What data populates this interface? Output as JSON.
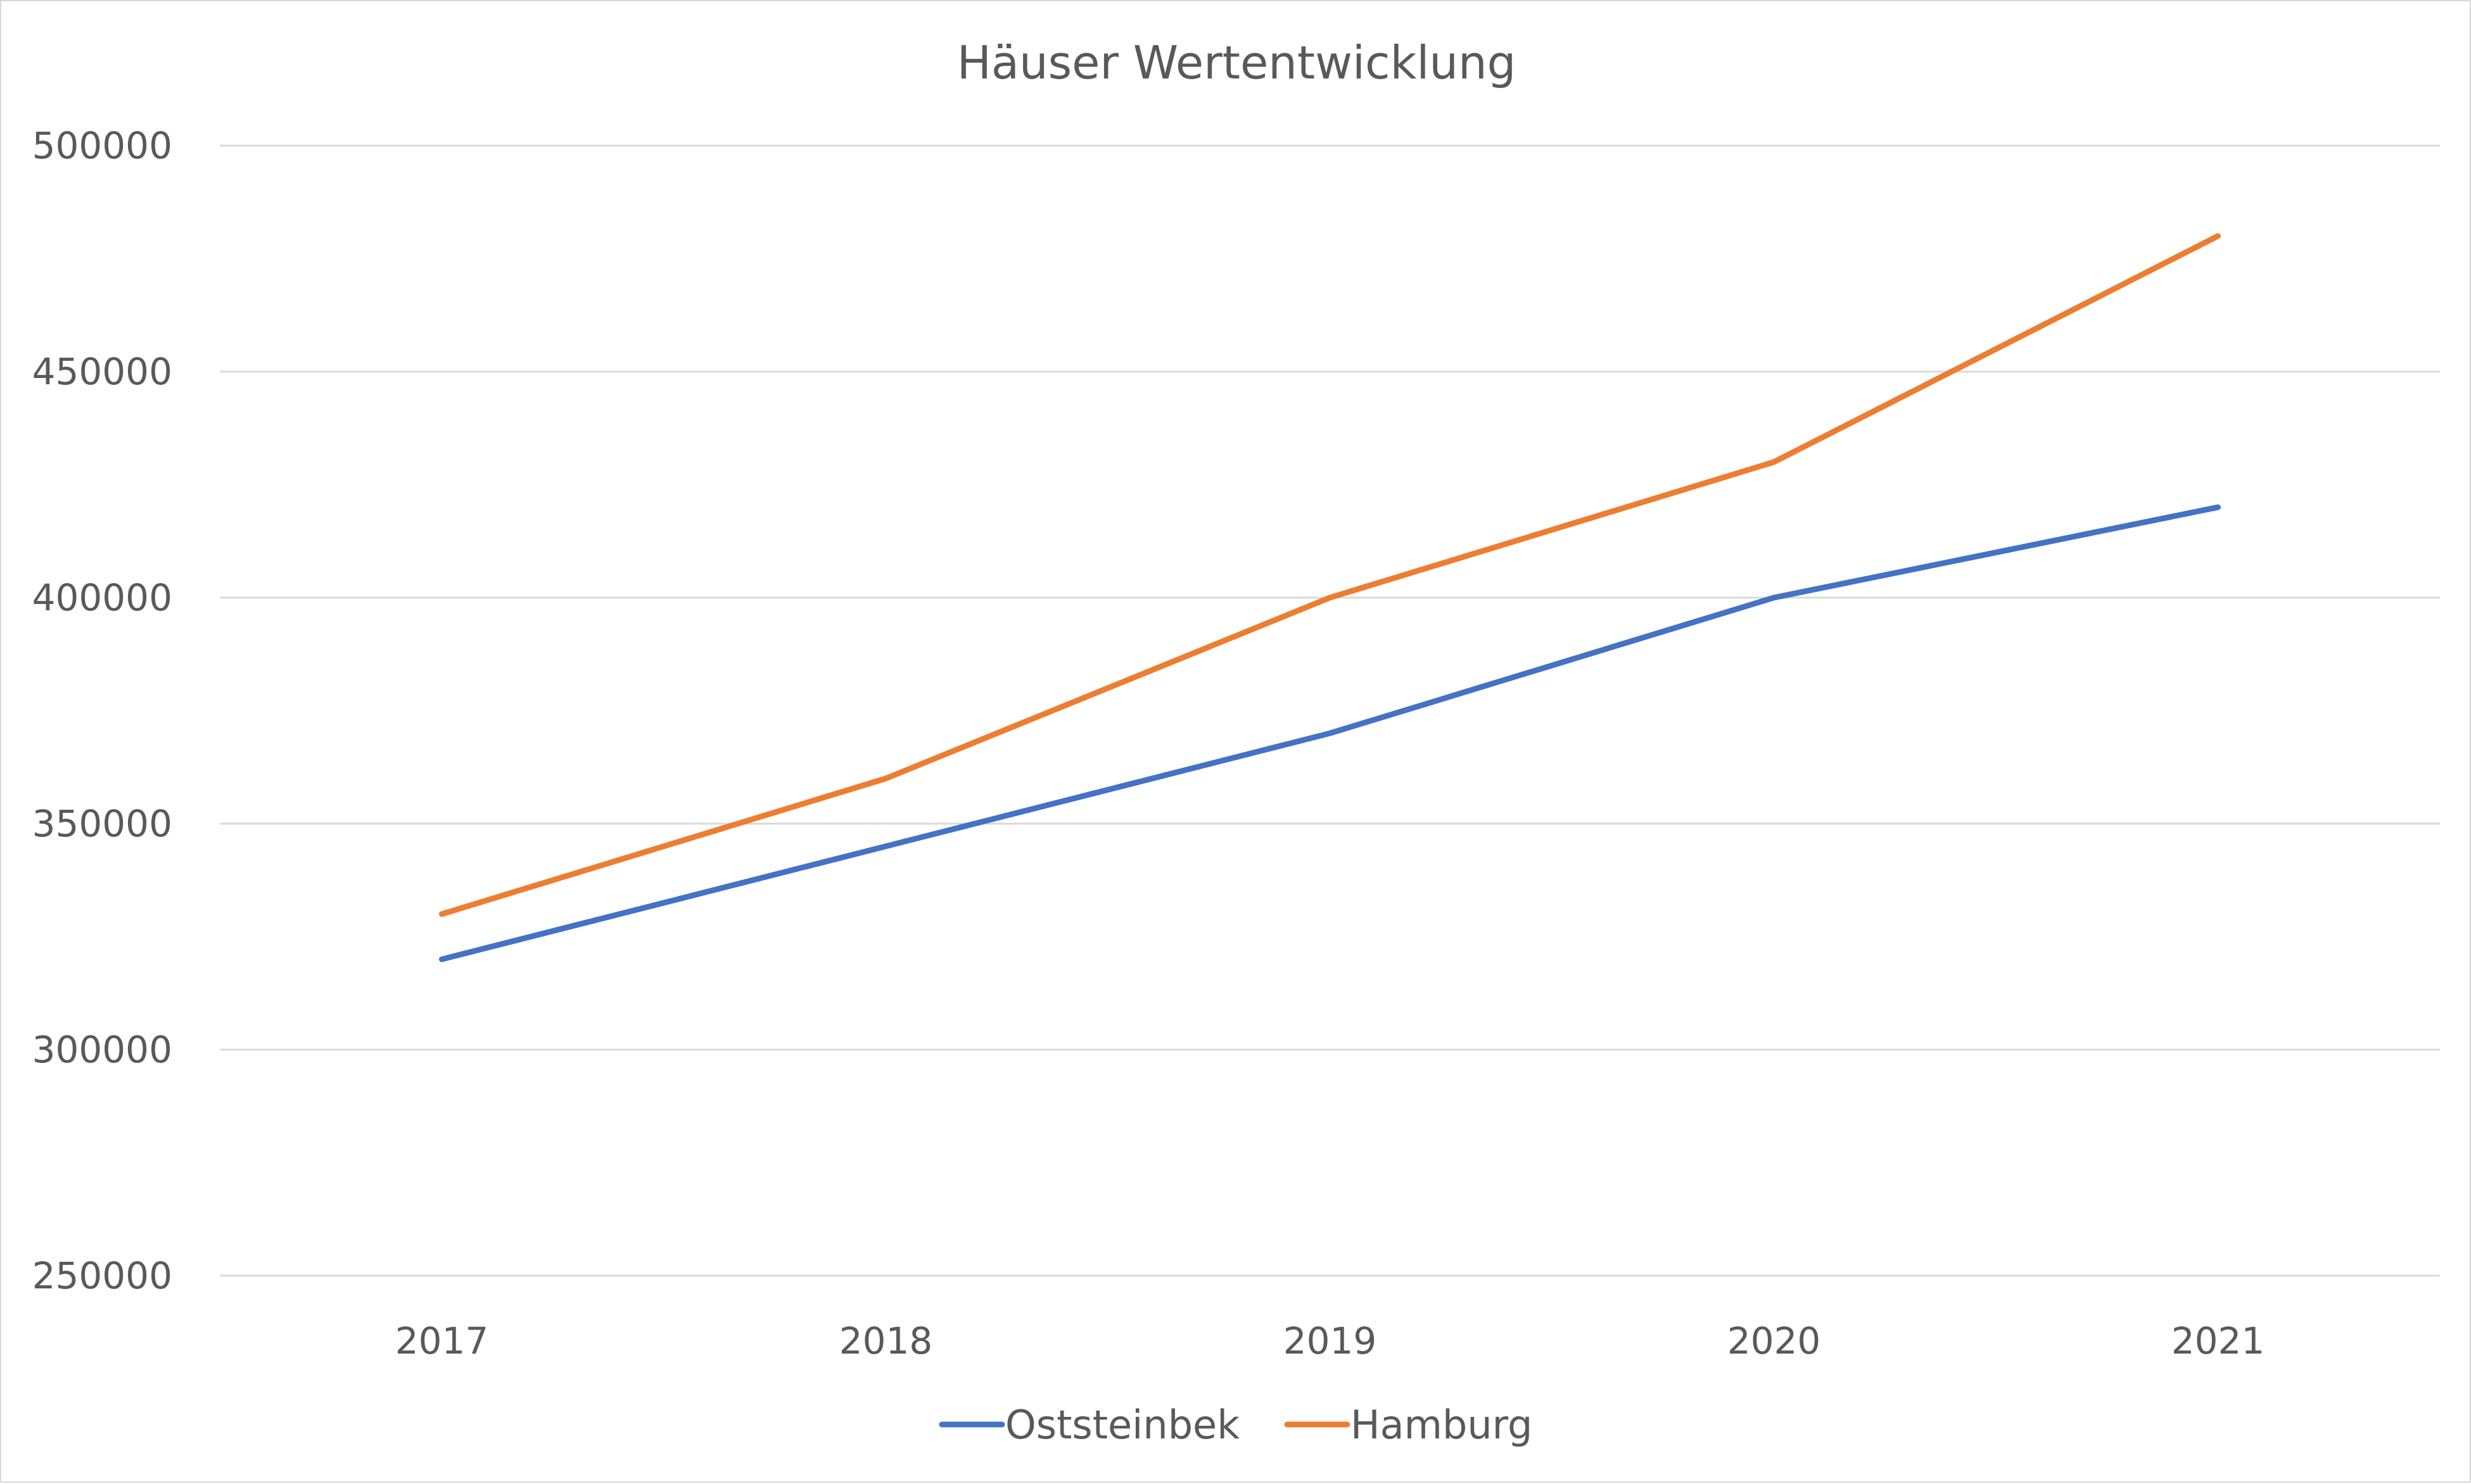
{
  "chart_data": {
    "type": "line",
    "title": "Häuser Wertentwicklung",
    "xlabel": "",
    "ylabel": "",
    "categories": [
      "2017",
      "2018",
      "2019",
      "2020",
      "2021"
    ],
    "series": [
      {
        "name": "Oststeinbek",
        "color": "#4472c4",
        "values": [
          320000,
          345000,
          370000,
          400000,
          420000
        ]
      },
      {
        "name": "Hamburg",
        "color": "#ed7d31",
        "values": [
          330000,
          360000,
          400000,
          430000,
          480000
        ]
      }
    ],
    "ylim": [
      250000,
      500000
    ],
    "yticks": [
      "250000",
      "300000",
      "350000",
      "400000",
      "450000",
      "500000"
    ],
    "grid": true,
    "legend_position": "bottom"
  }
}
